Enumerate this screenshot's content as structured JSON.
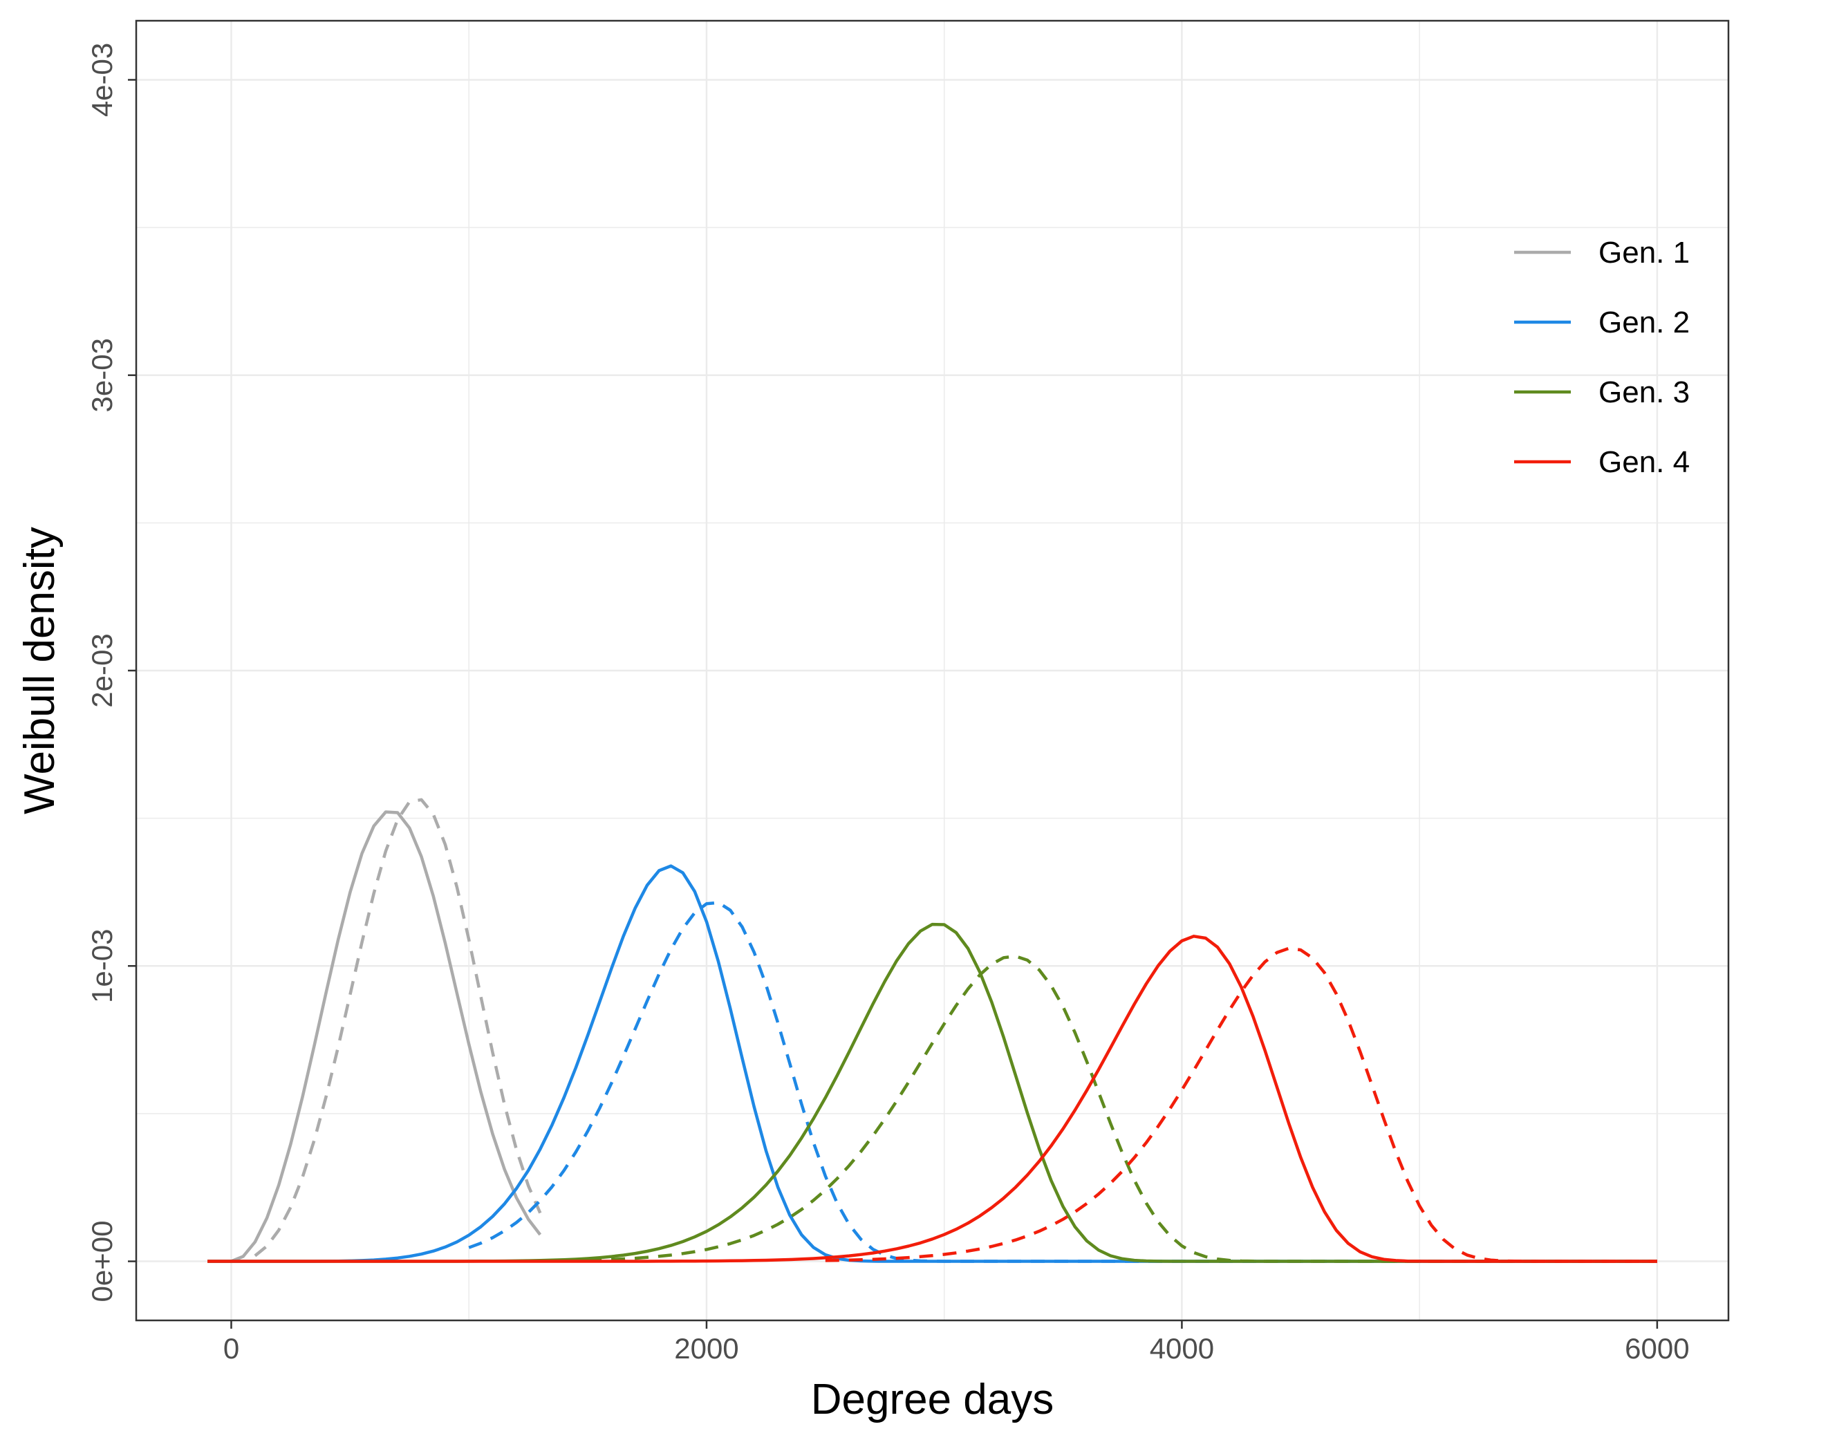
{
  "chart_data": {
    "type": "line",
    "xlabel": "Degree days",
    "ylabel": "Weibull density",
    "xlim": [
      -400,
      6300
    ],
    "ylim": [
      -0.0002,
      0.0042
    ],
    "x_ticks": [
      0,
      2000,
      4000,
      6000
    ],
    "x_tick_labels": [
      "0",
      "2000",
      "4000",
      "6000"
    ],
    "y_ticks": [
      0,
      0.001,
      0.002,
      0.003,
      0.004
    ],
    "y_tick_labels": [
      "0e+00",
      "1e-03",
      "2e-03",
      "3e-03",
      "4e-03"
    ],
    "grid": true,
    "legend_position": "top-right",
    "legend": [
      "Gen. 1",
      "Gen. 2",
      "Gen. 3",
      "Gen. 4"
    ],
    "series": [
      {
        "name": "Gen. 1",
        "color": "#ababab",
        "dash": "solid",
        "shape": 3.0,
        "scale": 770,
        "x_start": -100,
        "x_end": 1300
      },
      {
        "name": "Gen. 1",
        "color": "#ababab",
        "dash": "dashed",
        "shape": 3.5,
        "scale": 860,
        "x_start": 100,
        "x_end": 1300
      },
      {
        "name": "Gen. 2",
        "color": "#1e88e5",
        "dash": "solid",
        "shape": 6.8,
        "scale": 1890,
        "x_start": -100,
        "x_end": 6000
      },
      {
        "name": "Gen. 2",
        "color": "#1e88e5",
        "dash": "dashed",
        "shape": 6.8,
        "scale": 2080,
        "x_start": 1000,
        "x_end": 6000
      },
      {
        "name": "Gen. 3",
        "color": "#5f8a1e",
        "dash": "solid",
        "shape": 9.3,
        "scale": 3010,
        "x_start": -100,
        "x_end": 6000
      },
      {
        "name": "Gen. 3",
        "color": "#5f8a1e",
        "dash": "dashed",
        "shape": 9.3,
        "scale": 3330,
        "x_start": 1500,
        "x_end": 6000
      },
      {
        "name": "Gen. 4",
        "color": "#f21d0a",
        "dash": "solid",
        "shape": 12.2,
        "scale": 4090,
        "x_start": -100,
        "x_end": 6000
      },
      {
        "name": "Gen. 4",
        "color": "#f21d0a",
        "dash": "dashed",
        "shape": 12.9,
        "scale": 4490,
        "x_start": 2500,
        "x_end": 6000
      }
    ]
  }
}
